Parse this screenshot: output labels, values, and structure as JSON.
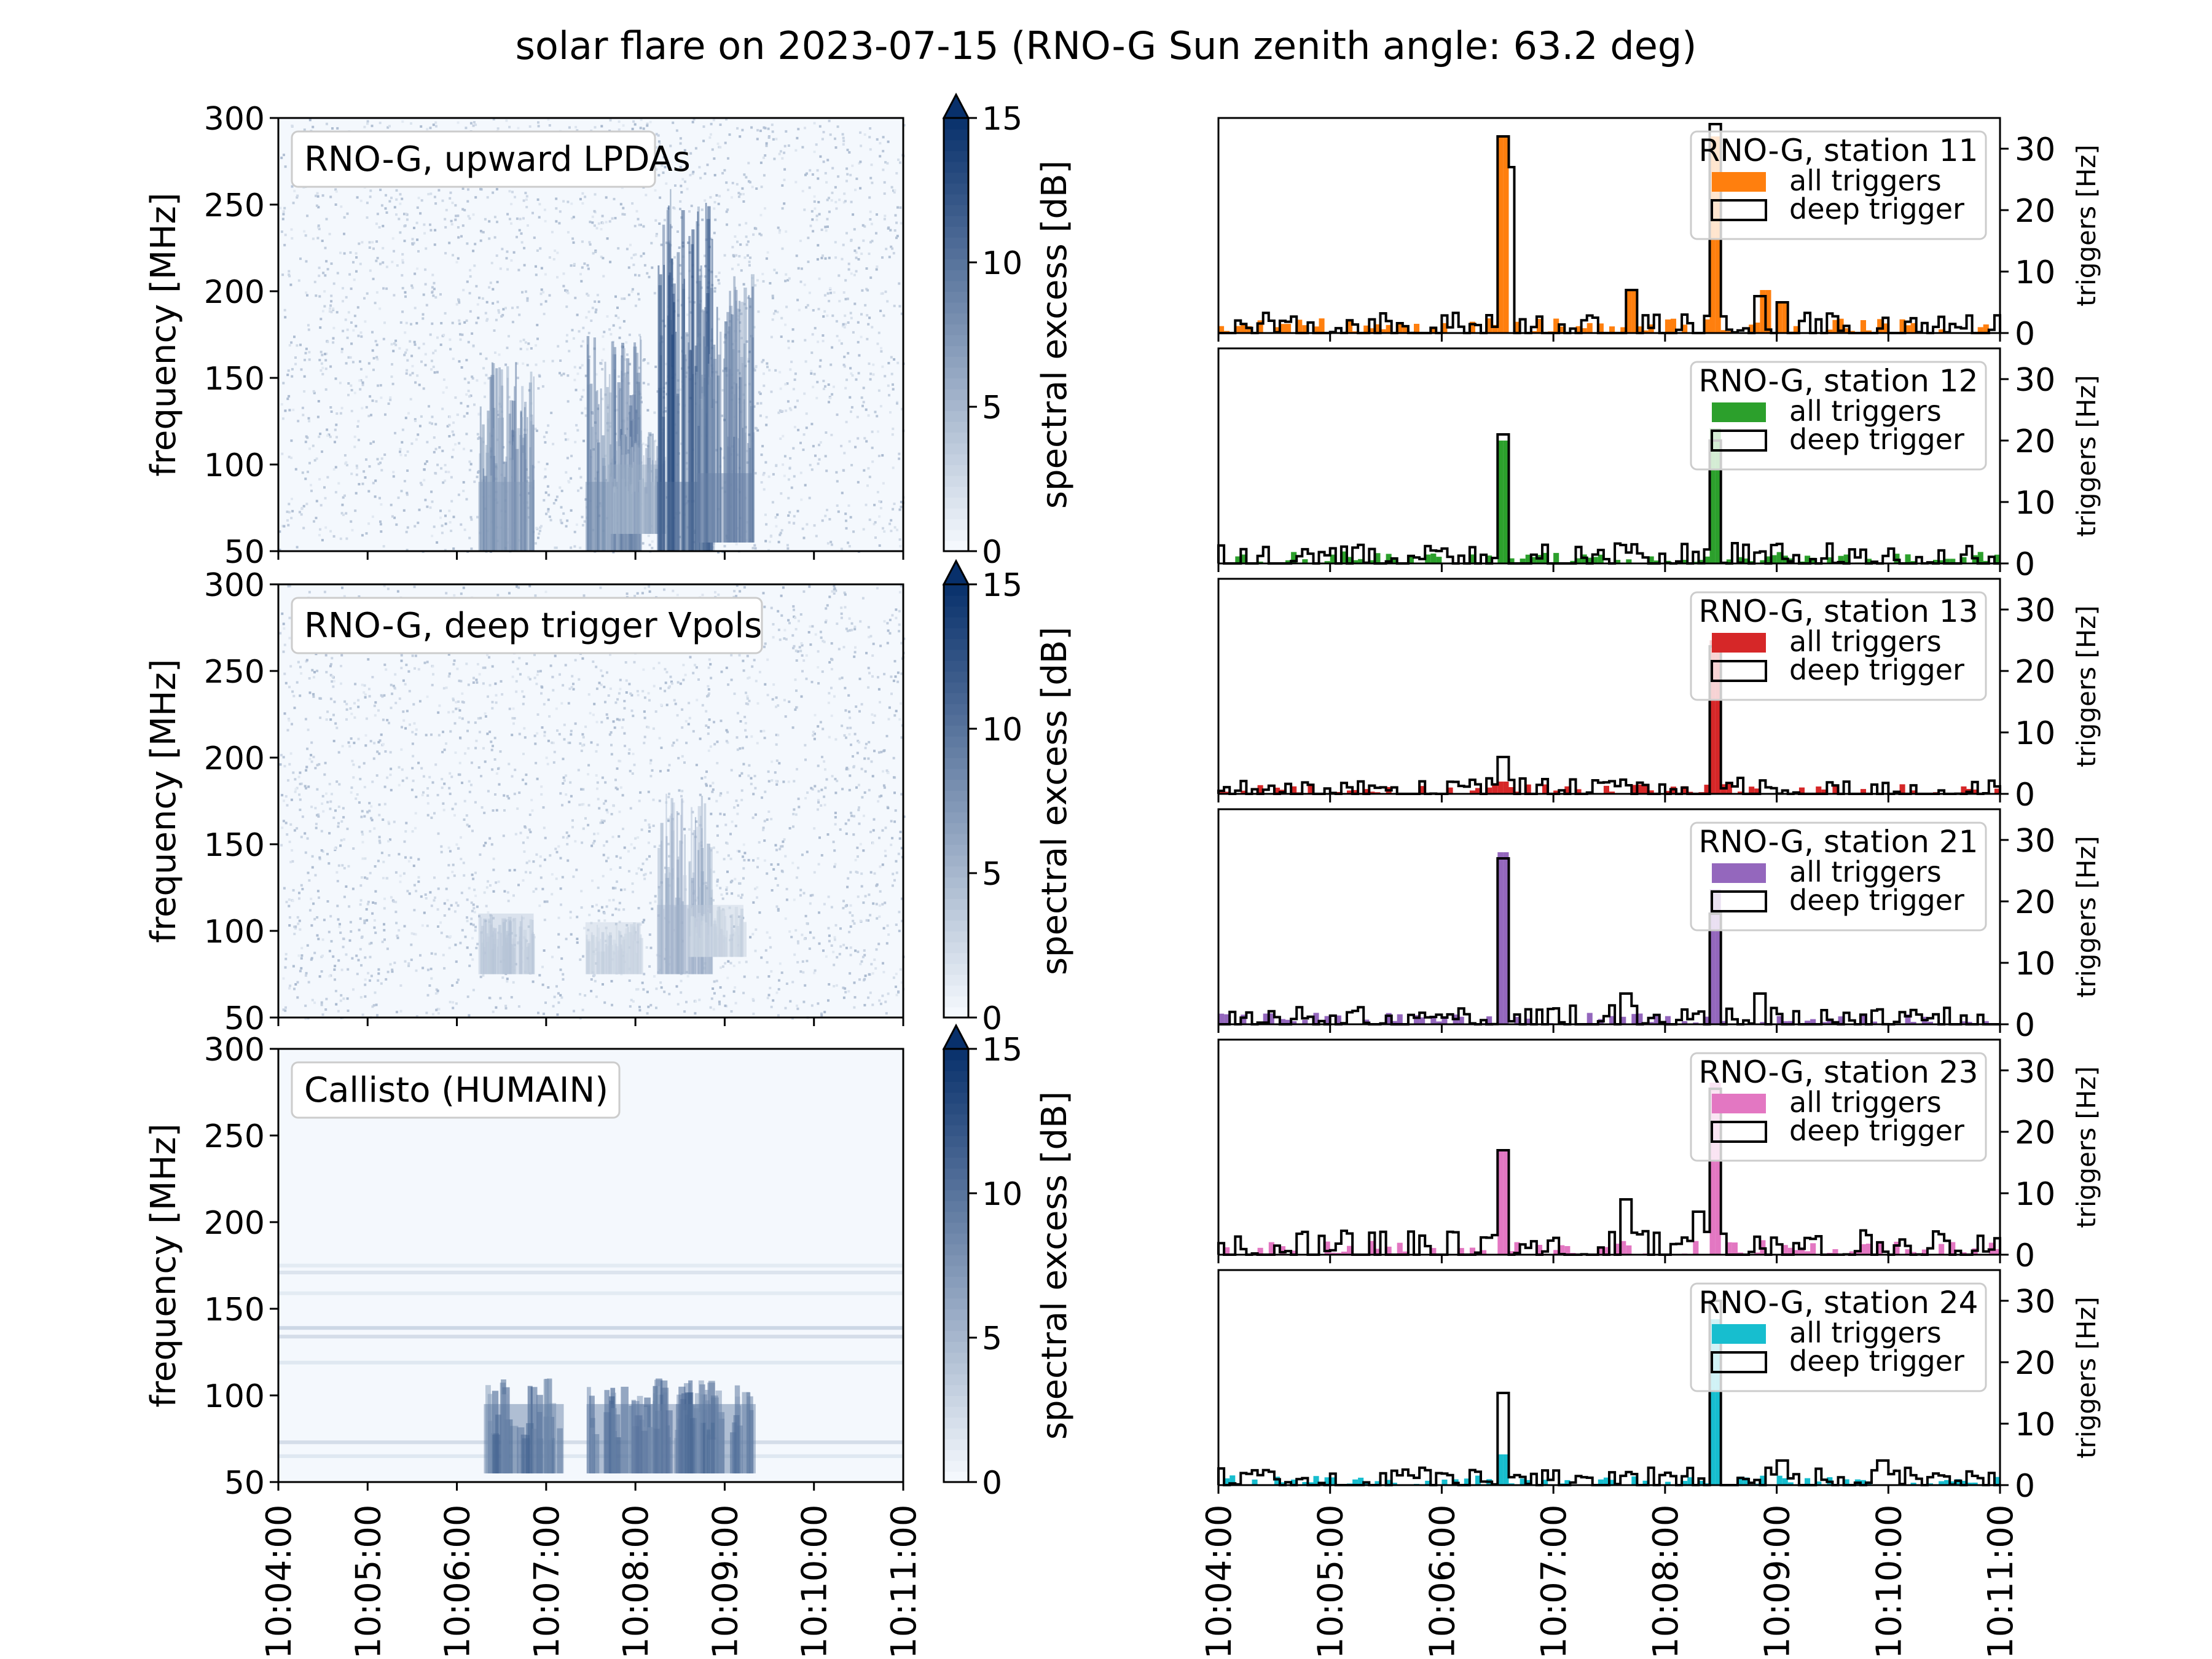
{
  "figure": {
    "title": "solar flare on 2023-07-15 (RNO-G Sun zenith angle: 63.2 deg)"
  },
  "time_ticks": [
    "10:04:00",
    "10:05:00",
    "10:06:00",
    "10:07:00",
    "10:08:00",
    "10:09:00",
    "10:10:00",
    "10:11:00"
  ],
  "colors": {
    "cmap_low": "#f7fbff",
    "cmap_high": "#08306b"
  },
  "chart_data": [
    {
      "type": "heatmap",
      "panel": "spectrogram-1",
      "label": "RNO-G, upward LPDAs",
      "ylabel": "frequency [MHz]",
      "ylim": [
        50,
        300
      ],
      "yticks": [
        50,
        100,
        150,
        200,
        250,
        300
      ],
      "colorbar": {
        "label": "spectral excess [dB]",
        "range": [
          0,
          15
        ],
        "ticks": [
          0,
          5,
          10,
          15
        ],
        "extend": "max"
      },
      "bursts": [
        {
          "t": 6.55,
          "f_lo": 50,
          "f_hi": 160,
          "intensity": 10
        },
        {
          "t": 7.75,
          "f_lo": 50,
          "f_hi": 175,
          "intensity": 11
        },
        {
          "t": 8.0,
          "f_lo": 60,
          "f_hi": 120,
          "intensity": 8
        },
        {
          "t": 8.55,
          "f_lo": 50,
          "f_hi": 260,
          "intensity": 14
        },
        {
          "t": 9.0,
          "f_lo": 55,
          "f_hi": 210,
          "intensity": 12
        }
      ]
    },
    {
      "type": "heatmap",
      "panel": "spectrogram-2",
      "label": "RNO-G, deep trigger Vpols",
      "ylabel": "frequency [MHz]",
      "ylim": [
        50,
        300
      ],
      "yticks": [
        50,
        100,
        150,
        200,
        250,
        300
      ],
      "colorbar": {
        "label": "spectral excess [dB]",
        "range": [
          0,
          15
        ],
        "ticks": [
          0,
          5,
          10,
          15
        ],
        "extend": "max"
      },
      "bursts": [
        {
          "t": 6.55,
          "f_lo": 75,
          "f_hi": 110,
          "intensity": 5
        },
        {
          "t": 7.75,
          "f_lo": 75,
          "f_hi": 105,
          "intensity": 4
        },
        {
          "t": 8.55,
          "f_lo": 75,
          "f_hi": 180,
          "intensity": 7
        },
        {
          "t": 8.9,
          "f_lo": 85,
          "f_hi": 115,
          "intensity": 4
        }
      ]
    },
    {
      "type": "heatmap",
      "panel": "spectrogram-3",
      "label": "Callisto (HUMAIN)",
      "ylabel": "frequency [MHz]",
      "ylim": [
        50,
        300
      ],
      "yticks": [
        50,
        100,
        150,
        200,
        250,
        300
      ],
      "colorbar": {
        "label": "spectral excess [dB]",
        "range": [
          0,
          15
        ],
        "ticks": [
          0,
          5,
          10,
          15
        ],
        "extend": "max"
      },
      "bursts": [
        {
          "t": 6.75,
          "f_lo": 55,
          "f_hi": 110,
          "intensity": 13
        },
        {
          "t": 7.9,
          "f_lo": 55,
          "f_hi": 110,
          "intensity": 13
        },
        {
          "t": 8.4,
          "f_lo": 55,
          "f_hi": 110,
          "intensity": 12
        },
        {
          "t": 8.9,
          "f_lo": 55,
          "f_hi": 110,
          "intensity": 13
        }
      ]
    },
    {
      "type": "bar",
      "panel": "station-11",
      "label": "RNO-G, station 11",
      "legend": [
        "all triggers",
        "deep trigger"
      ],
      "color": "#ff7f0e",
      "ylabel": "triggers [Hz]",
      "ylim": [
        0,
        35
      ],
      "yticks": [
        0,
        10,
        20,
        30
      ],
      "peaks_all": [
        [
          6.55,
          32
        ],
        [
          8.45,
          32
        ],
        [
          7.7,
          7
        ],
        [
          8.9,
          7
        ],
        [
          9.05,
          5
        ]
      ],
      "peaks_deep": [
        [
          6.55,
          32
        ],
        [
          6.6,
          27
        ],
        [
          8.45,
          34
        ],
        [
          7.7,
          7
        ],
        [
          8.85,
          6
        ],
        [
          9.05,
          5
        ]
      ],
      "baseline_all": 1.2,
      "baseline_deep": 1.5
    },
    {
      "type": "bar",
      "panel": "station-12",
      "label": "RNO-G, station 12",
      "legend": [
        "all triggers",
        "deep trigger"
      ],
      "color": "#2ca02c",
      "ylabel": "triggers [Hz]",
      "ylim": [
        0,
        35
      ],
      "yticks": [
        0,
        10,
        20,
        30
      ],
      "peaks_all": [
        [
          6.55,
          20
        ],
        [
          8.45,
          22
        ]
      ],
      "peaks_deep": [
        [
          6.55,
          21
        ],
        [
          8.45,
          20
        ],
        [
          7.6,
          3
        ],
        [
          9.0,
          3
        ]
      ],
      "baseline_all": 1.0,
      "baseline_deep": 1.5
    },
    {
      "type": "bar",
      "panel": "station-13",
      "label": "RNO-G, station 13",
      "legend": [
        "all triggers",
        "deep trigger"
      ],
      "color": "#d62728",
      "ylabel": "triggers [Hz]",
      "ylim": [
        0,
        35
      ],
      "yticks": [
        0,
        10,
        20,
        30
      ],
      "peaks_all": [
        [
          8.45,
          25
        ],
        [
          6.55,
          2
        ]
      ],
      "peaks_deep": [
        [
          8.45,
          24
        ],
        [
          6.55,
          6
        ]
      ],
      "baseline_all": 0.8,
      "baseline_deep": 1.2
    },
    {
      "type": "bar",
      "panel": "station-21",
      "label": "RNO-G, station 21",
      "legend": [
        "all triggers",
        "deep trigger"
      ],
      "color": "#9467bd",
      "ylabel": "triggers [Hz]",
      "ylim": [
        0,
        35
      ],
      "yticks": [
        0,
        10,
        20,
        30
      ],
      "peaks_all": [
        [
          6.55,
          28
        ],
        [
          8.45,
          22
        ]
      ],
      "peaks_deep": [
        [
          6.55,
          27
        ],
        [
          8.45,
          18
        ],
        [
          7.65,
          5
        ],
        [
          8.85,
          5
        ]
      ],
      "baseline_all": 1.0,
      "baseline_deep": 1.4
    },
    {
      "type": "bar",
      "panel": "station-23",
      "label": "RNO-G, station 23",
      "legend": [
        "all triggers",
        "deep trigger"
      ],
      "color": "#e377c2",
      "ylabel": "triggers [Hz]",
      "ylim": [
        0,
        35
      ],
      "yticks": [
        0,
        10,
        20,
        30
      ],
      "peaks_all": [
        [
          6.55,
          17
        ],
        [
          8.45,
          28
        ]
      ],
      "peaks_deep": [
        [
          6.55,
          17
        ],
        [
          8.45,
          27
        ],
        [
          7.65,
          9
        ],
        [
          8.3,
          7
        ]
      ],
      "baseline_all": 1.2,
      "baseline_deep": 1.8
    },
    {
      "type": "bar",
      "panel": "station-24",
      "label": "RNO-G, station 24",
      "legend": [
        "all triggers",
        "deep trigger"
      ],
      "color": "#17becf",
      "ylabel": "triggers [Hz]",
      "ylim": [
        0,
        35
      ],
      "yticks": [
        0,
        10,
        20,
        30
      ],
      "peaks_all": [
        [
          8.45,
          27
        ],
        [
          6.55,
          5
        ]
      ],
      "peaks_deep": [
        [
          8.45,
          30
        ],
        [
          6.55,
          15
        ],
        [
          9.05,
          4
        ],
        [
          9.95,
          4
        ]
      ],
      "baseline_all": 0.8,
      "baseline_deep": 1.3
    }
  ]
}
